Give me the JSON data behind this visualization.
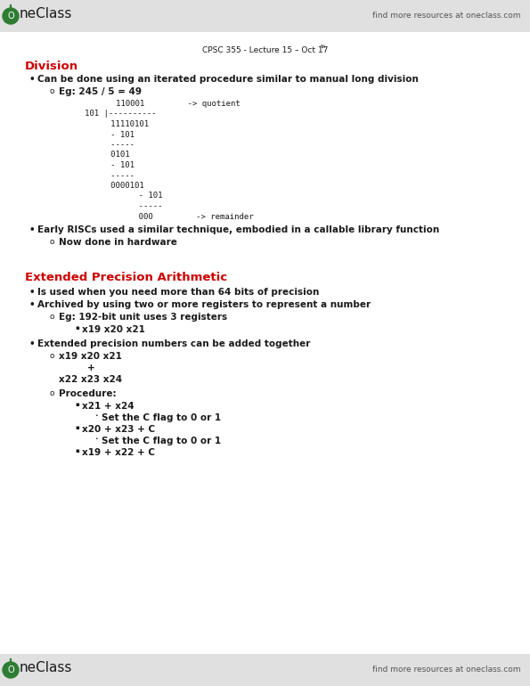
{
  "bg_color": "#ffffff",
  "header_text": "find more resources at oneclass.com",
  "footer_text": "find more resources at oneclass.com",
  "lecture_ref": "CPSC 355 - Lecture 15 – Oct 17",
  "lecture_ref_super": "th",
  "section1_title": "Division",
  "section2_title": "Extended Precision Arithmetic",
  "text_color": "#1a1a1a",
  "red_color": "#cc0000",
  "gray_color": "#555555",
  "oneclass_green": "#2e7d32",
  "header_bg": "#e8e8e8",
  "font_size_body": 7.5,
  "font_size_section": 9.5,
  "font_size_logo": 11,
  "font_size_ref": 6.5,
  "font_size_header": 6.5
}
